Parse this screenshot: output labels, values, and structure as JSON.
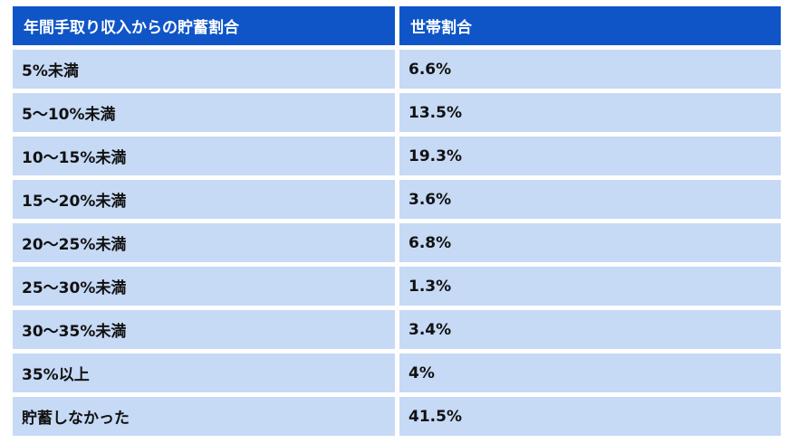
{
  "table": {
    "headers": [
      "年間手取り収入からの貯蓄割合",
      "世帯割合"
    ],
    "rows": [
      {
        "label": "5%未満",
        "value": "6.6%"
      },
      {
        "label": "5～10%未満",
        "value": "13.5%"
      },
      {
        "label": "10～15%未満",
        "value": "19.3%"
      },
      {
        "label": "15～20%未満",
        "value": "3.6%"
      },
      {
        "label": "20～25%未満",
        "value": "6.8%"
      },
      {
        "label": "25～30%未満",
        "value": "1.3%"
      },
      {
        "label": "30～35%未満",
        "value": "3.4%"
      },
      {
        "label": "35%以上",
        "value": "4%"
      },
      {
        "label": "貯蓄しなかった",
        "value": "41.5%"
      }
    ]
  },
  "colors": {
    "header_bg": "#0f55c8",
    "header_text": "#ffffff",
    "row_bg": "#c6d9f5",
    "row_text": "#111111"
  }
}
